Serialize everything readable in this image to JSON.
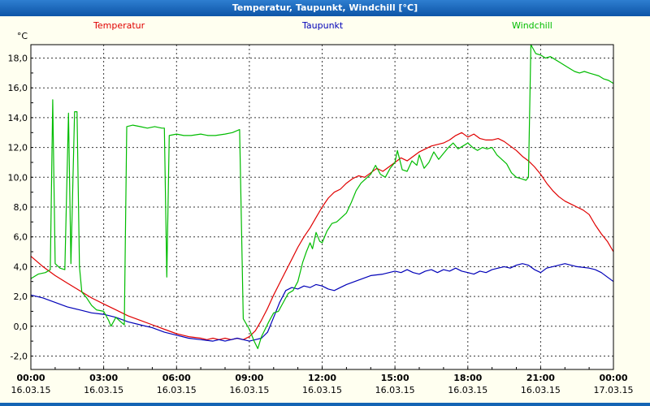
{
  "window": {
    "title": "Temperatur, Taupunkt, Windchill [°C]"
  },
  "chart_data": {
    "type": "line",
    "title": "Temperatur, Taupunkt, Windchill [°C]",
    "ylabel": "°C",
    "xlabel": "",
    "grid": "dashed",
    "legend_position": "top",
    "xlim": [
      0,
      24
    ],
    "ylim": [
      -2.9,
      18.9
    ],
    "yticks": [
      18,
      16,
      14,
      12,
      10,
      8,
      6,
      4,
      2,
      0,
      -2
    ],
    "ytick_labels": [
      "18,0",
      "16,0",
      "14,0",
      "12,0",
      "10,0",
      "8,0",
      "6,0",
      "4,0",
      "2,0",
      "0,0",
      "-2,0"
    ],
    "xticks": [
      0,
      3,
      6,
      9,
      12,
      15,
      18,
      21,
      24
    ],
    "xtick_times": [
      "00:00",
      "03:00",
      "06:00",
      "09:00",
      "12:00",
      "15:00",
      "18:00",
      "21:00",
      "00:00"
    ],
    "xtick_dates": [
      "16.03.15",
      "16.03.15",
      "16.03.15",
      "16.03.15",
      "16.03.15",
      "16.03.15",
      "16.03.15",
      "16.03.15",
      "17.03.15"
    ],
    "series": [
      {
        "name": "Temperatur",
        "color": "#e00000",
        "points": [
          [
            0,
            4.7
          ],
          [
            0.5,
            4.0
          ],
          [
            1,
            3.4
          ],
          [
            1.5,
            2.9
          ],
          [
            2,
            2.4
          ],
          [
            2.5,
            1.9
          ],
          [
            3,
            1.5
          ],
          [
            3.5,
            1.1
          ],
          [
            4,
            0.7
          ],
          [
            4.5,
            0.4
          ],
          [
            5,
            0.1
          ],
          [
            5.5,
            -0.2
          ],
          [
            6,
            -0.5
          ],
          [
            6.5,
            -0.7
          ],
          [
            7,
            -0.8
          ],
          [
            7.25,
            -0.9
          ],
          [
            7.5,
            -0.8
          ],
          [
            7.75,
            -0.9
          ],
          [
            8,
            -0.8
          ],
          [
            8.25,
            -0.9
          ],
          [
            8.5,
            -0.8
          ],
          [
            8.75,
            -0.9
          ],
          [
            9,
            -0.7
          ],
          [
            9.25,
            -0.3
          ],
          [
            9.5,
            0.4
          ],
          [
            9.75,
            1.2
          ],
          [
            10,
            2.1
          ],
          [
            10.25,
            2.9
          ],
          [
            10.5,
            3.7
          ],
          [
            10.75,
            4.5
          ],
          [
            11,
            5.3
          ],
          [
            11.25,
            6.0
          ],
          [
            11.5,
            6.6
          ],
          [
            11.75,
            7.3
          ],
          [
            12,
            8.0
          ],
          [
            12.25,
            8.6
          ],
          [
            12.5,
            9.0
          ],
          [
            12.75,
            9.2
          ],
          [
            13,
            9.6
          ],
          [
            13.25,
            9.9
          ],
          [
            13.5,
            10.1
          ],
          [
            13.75,
            10.0
          ],
          [
            14,
            10.3
          ],
          [
            14.25,
            10.6
          ],
          [
            14.5,
            10.4
          ],
          [
            14.75,
            10.7
          ],
          [
            15,
            11.0
          ],
          [
            15.25,
            11.3
          ],
          [
            15.5,
            11.1
          ],
          [
            15.75,
            11.4
          ],
          [
            16,
            11.7
          ],
          [
            16.25,
            11.9
          ],
          [
            16.5,
            12.1
          ],
          [
            16.75,
            12.2
          ],
          [
            17,
            12.3
          ],
          [
            17.25,
            12.5
          ],
          [
            17.5,
            12.8
          ],
          [
            17.75,
            13.0
          ],
          [
            18,
            12.7
          ],
          [
            18.25,
            12.9
          ],
          [
            18.5,
            12.6
          ],
          [
            18.75,
            12.5
          ],
          [
            19,
            12.5
          ],
          [
            19.25,
            12.6
          ],
          [
            19.5,
            12.4
          ],
          [
            19.75,
            12.1
          ],
          [
            20,
            11.8
          ],
          [
            20.25,
            11.4
          ],
          [
            20.5,
            11.1
          ],
          [
            20.75,
            10.7
          ],
          [
            21,
            10.2
          ],
          [
            21.25,
            9.6
          ],
          [
            21.5,
            9.1
          ],
          [
            21.75,
            8.7
          ],
          [
            22,
            8.4
          ],
          [
            22.25,
            8.2
          ],
          [
            22.5,
            8.0
          ],
          [
            22.75,
            7.8
          ],
          [
            23,
            7.5
          ],
          [
            23.25,
            6.8
          ],
          [
            23.5,
            6.2
          ],
          [
            23.75,
            5.7
          ],
          [
            24,
            5.0
          ]
        ]
      },
      {
        "name": "Taupunkt",
        "color": "#0000b8",
        "points": [
          [
            0,
            2.1
          ],
          [
            0.5,
            1.9
          ],
          [
            1,
            1.6
          ],
          [
            1.5,
            1.3
          ],
          [
            2,
            1.1
          ],
          [
            2.5,
            0.9
          ],
          [
            3,
            0.8
          ],
          [
            3.5,
            0.6
          ],
          [
            4,
            0.3
          ],
          [
            4.5,
            0.1
          ],
          [
            5,
            -0.1
          ],
          [
            5.5,
            -0.4
          ],
          [
            6,
            -0.6
          ],
          [
            6.5,
            -0.8
          ],
          [
            7,
            -0.9
          ],
          [
            7.5,
            -1.0
          ],
          [
            7.75,
            -0.9
          ],
          [
            8,
            -1.0
          ],
          [
            8.25,
            -0.9
          ],
          [
            8.5,
            -0.8
          ],
          [
            8.75,
            -0.9
          ],
          [
            9,
            -1.0
          ],
          [
            9.25,
            -0.9
          ],
          [
            9.5,
            -0.8
          ],
          [
            9.75,
            -0.4
          ],
          [
            10,
            0.6
          ],
          [
            10.25,
            1.6
          ],
          [
            10.5,
            2.4
          ],
          [
            10.75,
            2.6
          ],
          [
            11,
            2.5
          ],
          [
            11.25,
            2.7
          ],
          [
            11.5,
            2.6
          ],
          [
            11.75,
            2.8
          ],
          [
            12,
            2.7
          ],
          [
            12.25,
            2.5
          ],
          [
            12.5,
            2.4
          ],
          [
            12.75,
            2.6
          ],
          [
            13,
            2.8
          ],
          [
            13.5,
            3.1
          ],
          [
            14,
            3.4
          ],
          [
            14.5,
            3.5
          ],
          [
            15,
            3.7
          ],
          [
            15.25,
            3.6
          ],
          [
            15.5,
            3.8
          ],
          [
            15.75,
            3.6
          ],
          [
            16,
            3.5
          ],
          [
            16.25,
            3.7
          ],
          [
            16.5,
            3.8
          ],
          [
            16.75,
            3.6
          ],
          [
            17,
            3.8
          ],
          [
            17.25,
            3.7
          ],
          [
            17.5,
            3.9
          ],
          [
            17.75,
            3.7
          ],
          [
            18,
            3.6
          ],
          [
            18.25,
            3.5
          ],
          [
            18.5,
            3.7
          ],
          [
            18.75,
            3.6
          ],
          [
            19,
            3.8
          ],
          [
            19.25,
            3.9
          ],
          [
            19.5,
            4.0
          ],
          [
            19.75,
            3.9
          ],
          [
            20,
            4.1
          ],
          [
            20.25,
            4.2
          ],
          [
            20.5,
            4.1
          ],
          [
            20.75,
            3.8
          ],
          [
            21,
            3.6
          ],
          [
            21.25,
            3.9
          ],
          [
            21.5,
            4.0
          ],
          [
            21.75,
            4.1
          ],
          [
            22,
            4.2
          ],
          [
            22.25,
            4.1
          ],
          [
            22.5,
            4.0
          ],
          [
            23,
            3.9
          ],
          [
            23.25,
            3.8
          ],
          [
            23.5,
            3.6
          ],
          [
            23.75,
            3.3
          ],
          [
            24,
            3.0
          ]
        ]
      },
      {
        "name": "Windchill",
        "color": "#00bc00",
        "points": [
          [
            0,
            3.2
          ],
          [
            0.3,
            3.5
          ],
          [
            0.6,
            3.6
          ],
          [
            0.8,
            3.8
          ],
          [
            0.9,
            15.2
          ],
          [
            1.0,
            4.2
          ],
          [
            1.2,
            3.9
          ],
          [
            1.4,
            3.8
          ],
          [
            1.55,
            14.3
          ],
          [
            1.65,
            4.2
          ],
          [
            1.8,
            14.4
          ],
          [
            1.9,
            14.4
          ],
          [
            2.0,
            4.0
          ],
          [
            2.1,
            2.3
          ],
          [
            2.3,
            1.9
          ],
          [
            2.5,
            1.4
          ],
          [
            2.7,
            1.1
          ],
          [
            3.0,
            1.0
          ],
          [
            3.2,
            0.4
          ],
          [
            3.3,
            0.0
          ],
          [
            3.5,
            0.6
          ],
          [
            3.7,
            0.3
          ],
          [
            3.85,
            0.1
          ],
          [
            3.95,
            13.4
          ],
          [
            4.2,
            13.5
          ],
          [
            4.5,
            13.4
          ],
          [
            4.8,
            13.3
          ],
          [
            5.1,
            13.4
          ],
          [
            5.4,
            13.3
          ],
          [
            5.5,
            13.3
          ],
          [
            5.6,
            3.3
          ],
          [
            5.7,
            12.8
          ],
          [
            6.0,
            12.9
          ],
          [
            6.3,
            12.8
          ],
          [
            6.6,
            12.8
          ],
          [
            7.0,
            12.9
          ],
          [
            7.3,
            12.8
          ],
          [
            7.6,
            12.8
          ],
          [
            8.0,
            12.9
          ],
          [
            8.3,
            13.0
          ],
          [
            8.6,
            13.2
          ],
          [
            8.75,
            0.5
          ],
          [
            9.0,
            -0.2
          ],
          [
            9.2,
            -1.0
          ],
          [
            9.35,
            -1.5
          ],
          [
            9.5,
            -0.7
          ],
          [
            9.65,
            -0.2
          ],
          [
            9.8,
            0.3
          ],
          [
            10.0,
            0.9
          ],
          [
            10.2,
            1.0
          ],
          [
            10.4,
            1.6
          ],
          [
            10.6,
            2.2
          ],
          [
            10.8,
            2.4
          ],
          [
            11.0,
            3.0
          ],
          [
            11.2,
            4.3
          ],
          [
            11.35,
            5.0
          ],
          [
            11.5,
            5.6
          ],
          [
            11.6,
            5.2
          ],
          [
            11.75,
            6.3
          ],
          [
            11.9,
            5.7
          ],
          [
            12.0,
            5.6
          ],
          [
            12.2,
            6.4
          ],
          [
            12.4,
            6.9
          ],
          [
            12.6,
            7.0
          ],
          [
            12.8,
            7.3
          ],
          [
            13.0,
            7.6
          ],
          [
            13.2,
            8.3
          ],
          [
            13.4,
            9.1
          ],
          [
            13.6,
            9.6
          ],
          [
            13.8,
            9.9
          ],
          [
            14.0,
            10.2
          ],
          [
            14.2,
            10.8
          ],
          [
            14.4,
            10.2
          ],
          [
            14.6,
            10.0
          ],
          [
            14.8,
            10.6
          ],
          [
            15.0,
            11.0
          ],
          [
            15.1,
            11.8
          ],
          [
            15.3,
            10.5
          ],
          [
            15.5,
            10.4
          ],
          [
            15.7,
            11.1
          ],
          [
            15.9,
            10.8
          ],
          [
            16.0,
            11.5
          ],
          [
            16.2,
            10.6
          ],
          [
            16.4,
            11.0
          ],
          [
            16.6,
            11.7
          ],
          [
            16.8,
            11.2
          ],
          [
            17.0,
            11.6
          ],
          [
            17.2,
            12.0
          ],
          [
            17.4,
            12.3
          ],
          [
            17.6,
            11.9
          ],
          [
            17.8,
            12.1
          ],
          [
            18.0,
            12.3
          ],
          [
            18.2,
            12.0
          ],
          [
            18.4,
            11.8
          ],
          [
            18.6,
            12.0
          ],
          [
            18.8,
            11.9
          ],
          [
            19.0,
            12.0
          ],
          [
            19.2,
            11.5
          ],
          [
            19.4,
            11.2
          ],
          [
            19.6,
            10.9
          ],
          [
            19.8,
            10.3
          ],
          [
            20.0,
            10.0
          ],
          [
            20.2,
            9.9
          ],
          [
            20.4,
            9.8
          ],
          [
            20.5,
            10.0
          ],
          [
            20.6,
            18.9
          ],
          [
            20.8,
            18.3
          ],
          [
            21.0,
            18.2
          ],
          [
            21.2,
            18.0
          ],
          [
            21.4,
            18.1
          ],
          [
            21.6,
            17.9
          ],
          [
            21.8,
            17.7
          ],
          [
            22.0,
            17.5
          ],
          [
            22.2,
            17.3
          ],
          [
            22.4,
            17.1
          ],
          [
            22.6,
            17.0
          ],
          [
            22.8,
            17.1
          ],
          [
            23.0,
            17.0
          ],
          [
            23.2,
            16.9
          ],
          [
            23.4,
            16.8
          ],
          [
            23.6,
            16.6
          ],
          [
            23.8,
            16.5
          ],
          [
            24.0,
            16.3
          ]
        ]
      }
    ]
  },
  "colors": {
    "titlebar": "#1464b4",
    "background": "#fffff0",
    "plot_background": "#ffffff",
    "temperatur": "#e00000",
    "taupunkt": "#0000b8",
    "windchill": "#00bc00"
  }
}
